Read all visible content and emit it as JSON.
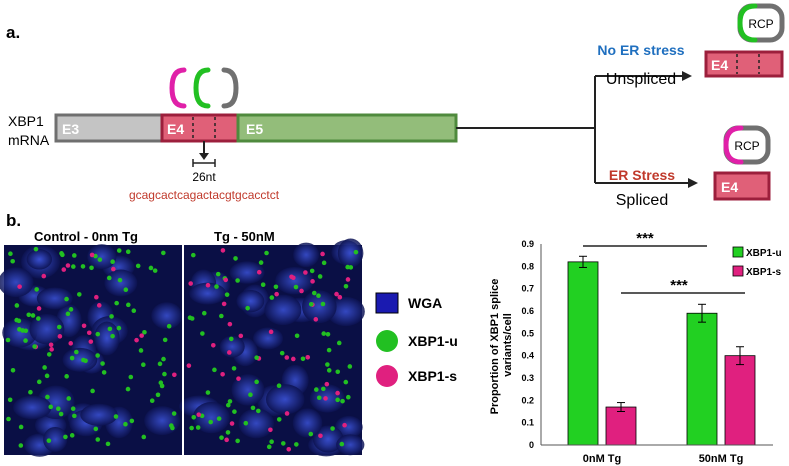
{
  "panel_a": {
    "label": "a.",
    "mrna_label_1": "XBP1",
    "mrna_label_2": "mRNA",
    "exons": {
      "e3": "E3",
      "e4": "E4",
      "e5": "E5"
    },
    "cut_length": "26nt",
    "intron_sequence": "gcagcactcagactacgtgcacctct",
    "top_branch": {
      "condition": "No ER stress",
      "result": "Unspliced",
      "exon": "E4",
      "probe": "RCP"
    },
    "bottom_branch": {
      "condition": "ER Stress",
      "result": "Spliced",
      "exon": "E4",
      "probe": "RCP"
    },
    "colors": {
      "e3": "#c4c4c4",
      "e4": "#e06078",
      "e5": "#93bd7a",
      "magenta": "#e020a8",
      "green": "#22c022",
      "gray": "#707070",
      "blue_text": "#1f6fbf",
      "red_text": "#c0392b"
    }
  },
  "panel_b": {
    "label": "b.",
    "image_titles": [
      "Control - 0nm Tg",
      "Tg - 50nM"
    ],
    "legend": [
      {
        "label": "WGA",
        "color": "#1a1ab0",
        "icon": "square-swatch"
      },
      {
        "label": "XBP1-u",
        "color": "#22c022",
        "icon": "circle-swatch"
      },
      {
        "label": "XBP1-s",
        "color": "#e0207f",
        "icon": "circle-swatch"
      }
    ]
  },
  "chart_data": {
    "type": "bar",
    "categories": [
      "0nM Tg",
      "50nM Tg"
    ],
    "series": [
      {
        "name": "XBP1-u",
        "values": [
          0.82,
          0.59
        ],
        "errors": [
          0.025,
          0.04
        ],
        "color": "#22d022"
      },
      {
        "name": "XBP1-s",
        "values": [
          0.17,
          0.4
        ],
        "errors": [
          0.02,
          0.04
        ],
        "color": "#e0207f"
      }
    ],
    "xlabel": "",
    "ylabel": "Proportion of XBP1 splice variants/cell",
    "ylim": [
      0,
      0.9
    ],
    "yticks": [
      "0",
      "0.1",
      "0.2",
      "0.3",
      "0.4",
      "0.5",
      "0.6",
      "0.7",
      "0.8",
      "0.9"
    ],
    "significance": [
      "***",
      "***"
    ],
    "legend_position": "top-right",
    "grid": false
  }
}
